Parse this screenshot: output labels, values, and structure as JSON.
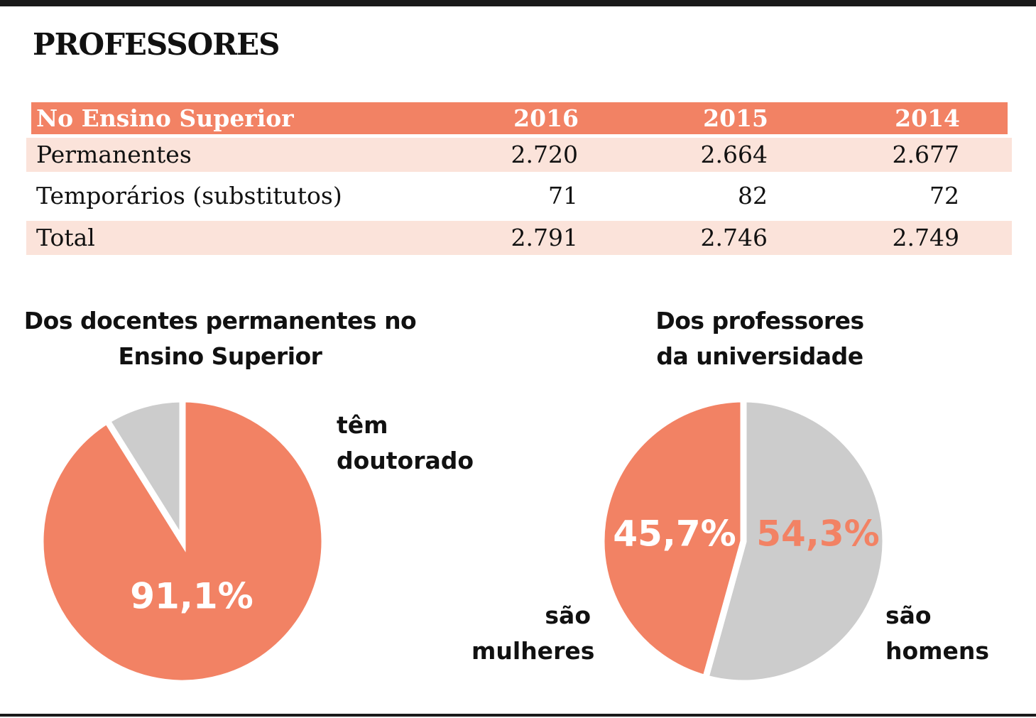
{
  "title": "PROFESSORES",
  "table": {
    "header": [
      "No Ensino Superior",
      "2016",
      "2015",
      "2014"
    ],
    "rows": [
      [
        "Permanentes",
        "2.720",
        "2.664",
        "2.677"
      ],
      [
        "Temporários (substitutos)",
        "71",
        "82",
        "72"
      ],
      [
        "Total",
        "2.791",
        "2.746",
        "2.749"
      ]
    ]
  },
  "colors": {
    "accent": "#f28264",
    "grey": "#cccccc",
    "row_tint": "#fbe3da"
  },
  "chart_data": [
    {
      "type": "table",
      "title": "No Ensino Superior",
      "columns": [
        "2016",
        "2015",
        "2014"
      ],
      "rows": [
        {
          "name": "Permanentes",
          "values": [
            2720,
            2664,
            2677
          ]
        },
        {
          "name": "Temporários (substitutos)",
          "values": [
            71,
            82,
            72
          ]
        },
        {
          "name": "Total",
          "values": [
            2791,
            2746,
            2749
          ]
        }
      ]
    },
    {
      "type": "pie",
      "title_line1": "Dos docentes permanentes no",
      "title_line2": "Ensino Superior",
      "slices": [
        {
          "value": 91.1,
          "label": "91,1%",
          "color": "#f28264",
          "caption_line1": "têm",
          "caption_line2": "doutorado"
        },
        {
          "value": 8.9,
          "label": "",
          "color": "#cccccc"
        }
      ]
    },
    {
      "type": "pie",
      "title_line1": "Dos professores",
      "title_line2": "da universidade",
      "slices": [
        {
          "value": 45.7,
          "label": "45,7%",
          "color": "#f28264",
          "caption_line1": "são",
          "caption_line2": "mulheres"
        },
        {
          "value": 54.3,
          "label": "54,3%",
          "color": "#cccccc",
          "caption_line1": "são",
          "caption_line2": "homens"
        }
      ]
    }
  ]
}
